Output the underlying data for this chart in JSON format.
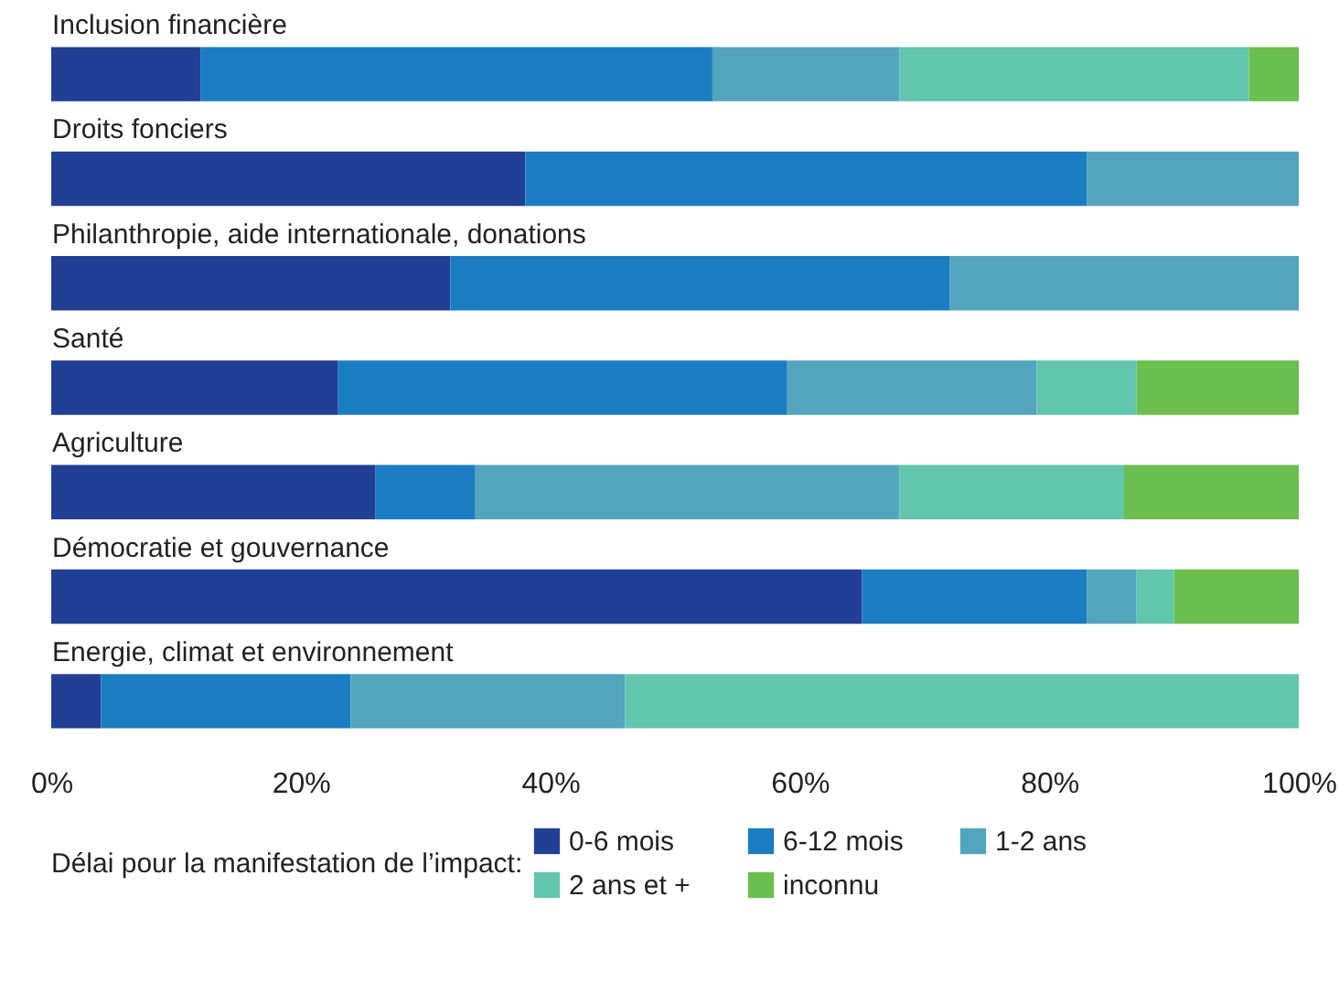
{
  "chart_data": {
    "type": "bar",
    "orientation": "horizontal",
    "stacked": true,
    "categories": [
      "Inclusion financière",
      "Droits fonciers",
      "Philanthropie, aide internationale, donations",
      "Santé",
      "Agriculture",
      "Démocratie et gouvernance",
      "Energie, climat et environnement"
    ],
    "series": [
      {
        "name": "0-6 mois",
        "color": "#213f95",
        "values": [
          12,
          38,
          32,
          23,
          26,
          65,
          4
        ]
      },
      {
        "name": "6-12 mois",
        "color": "#1b7dc1",
        "values": [
          41,
          45,
          40,
          36,
          8,
          18,
          20
        ]
      },
      {
        "name": "1-2 ans",
        "color": "#52a5bd",
        "values": [
          15,
          17,
          28,
          20,
          34,
          4,
          22
        ]
      },
      {
        "name": "2 ans et +",
        "color": "#62c6ad",
        "values": [
          28,
          null,
          null,
          8,
          18,
          3,
          54
        ]
      },
      {
        "name": "inconnu",
        "color": "#6bbf4f",
        "values": [
          4,
          null,
          null,
          13,
          14,
          10,
          null
        ]
      }
    ],
    "xlim": [
      0,
      100
    ],
    "xticks": [
      {
        "value": 0,
        "label": "0%"
      },
      {
        "value": 20,
        "label": "20%"
      },
      {
        "value": 40,
        "label": "40%"
      },
      {
        "value": 60,
        "label": "60%"
      },
      {
        "value": 80,
        "label": "80%"
      },
      {
        "value": 100,
        "label": "100%"
      }
    ],
    "legend_title": "Délai pour la manifestation de l’impact:",
    "legend": "bottom",
    "grid": false
  }
}
